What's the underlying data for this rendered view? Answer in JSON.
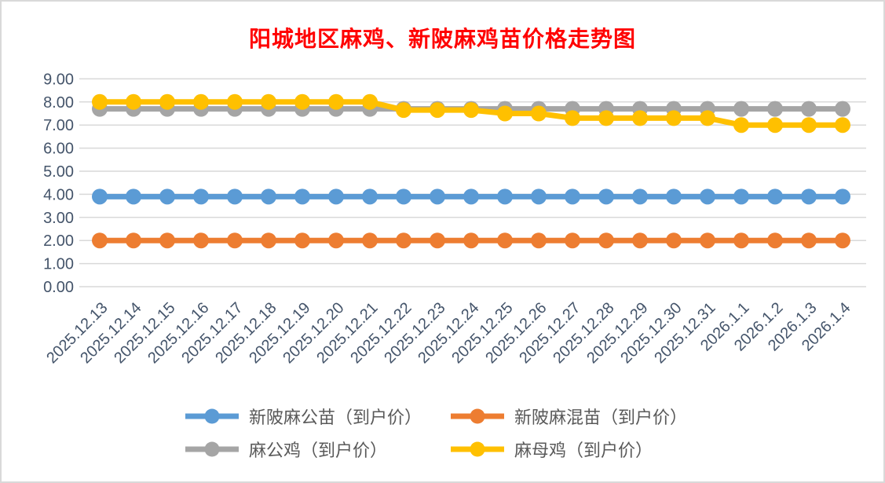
{
  "frame": {
    "background": "#FFFFFF",
    "border_color": "#D9D9D9"
  },
  "chart_data": {
    "type": "line",
    "title": "阳城地区麻鸡、新陂麻鸡苗价格走势图",
    "title_color": "#FF0000",
    "categories": [
      "2025.12.13",
      "2025.12.14",
      "2025.12.15",
      "2025.12.16",
      "2025.12.17",
      "2025.12.18",
      "2025.12.19",
      "2025.12.20",
      "2025.12.21",
      "2025.12.22",
      "2025.12.23",
      "2025.12.24",
      "2025.12.25",
      "2025.12.26",
      "2025.12.27",
      "2025.12.28",
      "2025.12.29",
      "2025.12.30",
      "2025.12.31",
      "2026.1.1",
      "2026.1.2",
      "2026.1.3",
      "2026.1.4"
    ],
    "series": [
      {
        "name": "新陂麻公苗（到户价）",
        "color": "#5B9BD5",
        "values": [
          3.9,
          3.9,
          3.9,
          3.9,
          3.9,
          3.9,
          3.9,
          3.9,
          3.9,
          3.9,
          3.9,
          3.9,
          3.9,
          3.9,
          3.9,
          3.9,
          3.9,
          3.9,
          3.9,
          3.9,
          3.9,
          3.9,
          3.9
        ]
      },
      {
        "name": "新陂麻混苗（到户价）",
        "color": "#ED7D31",
        "values": [
          2.0,
          2.0,
          2.0,
          2.0,
          2.0,
          2.0,
          2.0,
          2.0,
          2.0,
          2.0,
          2.0,
          2.0,
          2.0,
          2.0,
          2.0,
          2.0,
          2.0,
          2.0,
          2.0,
          2.0,
          2.0,
          2.0,
          2.0
        ]
      },
      {
        "name": "麻公鸡（到户价）",
        "color": "#A5A5A5",
        "values": [
          7.7,
          7.7,
          7.7,
          7.7,
          7.7,
          7.7,
          7.7,
          7.7,
          7.7,
          7.7,
          7.7,
          7.7,
          7.7,
          7.7,
          7.7,
          7.7,
          7.7,
          7.7,
          7.7,
          7.7,
          7.7,
          7.7,
          7.7
        ]
      },
      {
        "name": "麻母鸡（到户价）",
        "color": "#FFC000",
        "values": [
          8.0,
          8.0,
          8.0,
          8.0,
          8.0,
          8.0,
          8.0,
          8.0,
          8.0,
          7.65,
          7.65,
          7.65,
          7.5,
          7.5,
          7.3,
          7.3,
          7.3,
          7.3,
          7.3,
          7.0,
          7.0,
          7.0,
          7.0
        ]
      }
    ],
    "ylim": [
      0,
      9
    ],
    "ytick_step": 1,
    "y_ticks": [
      "0.00",
      "1.00",
      "2.00",
      "3.00",
      "4.00",
      "5.00",
      "6.00",
      "7.00",
      "8.00",
      "9.00"
    ],
    "xlabel": "",
    "ylabel": "",
    "grid": true,
    "gridline_color": "#D9D9D9",
    "axis_label_color": "#44546A",
    "legend_position": "bottom",
    "legend_text_color": "#595959"
  }
}
